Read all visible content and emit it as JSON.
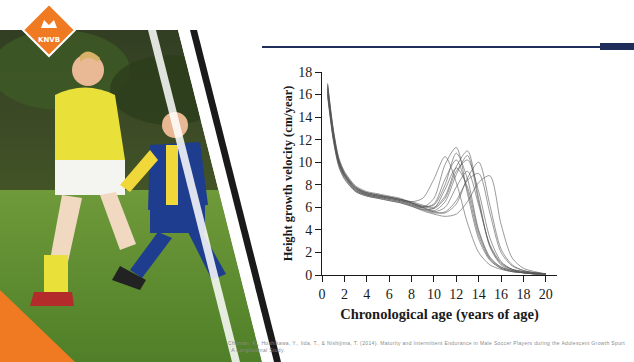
{
  "chart_data": {
    "type": "line",
    "xlabel": "Chronological age (years of age)",
    "ylabel": "Height growth velocity (cm/year)",
    "xlim": [
      0,
      21
    ],
    "xticks": [
      0,
      2,
      4,
      6,
      8,
      10,
      12,
      14,
      16,
      18,
      20
    ],
    "ylim": [
      0,
      18
    ],
    "yticks": [
      0,
      2,
      4,
      6,
      8,
      10,
      12,
      14,
      16,
      18
    ],
    "grid": false,
    "color": "#555555",
    "x": [
      0.5,
      1,
      1.5,
      2,
      3,
      4,
      5,
      6,
      7,
      8,
      9,
      10,
      11,
      12,
      13,
      14,
      15,
      16,
      17,
      18,
      19,
      20
    ],
    "series": [
      {
        "values": [
          16.8,
          12.8,
          10.2,
          9.0,
          7.8,
          7.3,
          7.1,
          6.9,
          6.7,
          6.5,
          6.8,
          8.5,
          10.5,
          8.2,
          4.6,
          2.0,
          0.9,
          0.5,
          0.3,
          0.2,
          0.1,
          0.1
        ]
      },
      {
        "values": [
          16.2,
          12.2,
          9.8,
          8.7,
          7.5,
          7.1,
          6.9,
          6.7,
          6.5,
          6.2,
          6.0,
          6.8,
          9.8,
          11.3,
          7.2,
          3.2,
          1.3,
          0.6,
          0.3,
          0.2,
          0.1,
          0.1
        ]
      },
      {
        "values": [
          17.0,
          13.0,
          10.4,
          9.2,
          7.9,
          7.4,
          7.2,
          7.0,
          6.8,
          6.4,
          6.1,
          6.2,
          8.0,
          10.8,
          8.5,
          4.0,
          1.6,
          0.7,
          0.4,
          0.2,
          0.1,
          0.1
        ]
      },
      {
        "values": [
          15.8,
          12.0,
          9.6,
          8.5,
          7.4,
          7.0,
          6.8,
          6.6,
          6.4,
          6.1,
          5.8,
          5.9,
          7.6,
          9.5,
          7.8,
          3.8,
          1.5,
          0.7,
          0.4,
          0.2,
          0.1,
          0.1
        ]
      },
      {
        "values": [
          16.5,
          12.5,
          10.0,
          8.9,
          7.7,
          7.2,
          7.0,
          6.9,
          6.7,
          6.4,
          6.0,
          5.7,
          6.5,
          8.9,
          10.6,
          6.5,
          2.6,
          1.0,
          0.5,
          0.3,
          0.1,
          0.1
        ]
      },
      {
        "values": [
          16.0,
          12.3,
          9.9,
          8.8,
          7.6,
          7.1,
          6.9,
          6.8,
          6.6,
          6.3,
          5.9,
          5.6,
          6.0,
          7.8,
          9.2,
          6.2,
          2.7,
          1.1,
          0.5,
          0.3,
          0.2,
          0.1
        ]
      },
      {
        "values": [
          16.6,
          12.6,
          10.1,
          8.9,
          7.6,
          7.2,
          7.0,
          6.8,
          6.6,
          6.4,
          6.1,
          5.9,
          6.8,
          9.2,
          10.2,
          7.4,
          3.3,
          1.2,
          0.5,
          0.3,
          0.2,
          0.1
        ]
      },
      {
        "values": [
          16.3,
          12.4,
          10.0,
          8.8,
          7.5,
          7.1,
          6.9,
          6.7,
          6.5,
          6.2,
          5.8,
          5.5,
          5.6,
          6.6,
          8.4,
          9.0,
          5.5,
          2.0,
          0.8,
          0.4,
          0.2,
          0.1
        ]
      },
      {
        "values": [
          16.9,
          12.9,
          10.3,
          9.1,
          7.8,
          7.3,
          7.1,
          6.9,
          6.7,
          6.4,
          6.0,
          5.6,
          5.5,
          6.3,
          8.6,
          10.0,
          6.2,
          2.3,
          0.9,
          0.4,
          0.2,
          0.1
        ]
      },
      {
        "values": [
          16.1,
          12.1,
          9.7,
          8.6,
          7.4,
          7.0,
          6.8,
          6.6,
          6.4,
          6.1,
          5.7,
          5.4,
          5.2,
          5.4,
          6.5,
          8.2,
          8.8,
          4.5,
          1.5,
          0.6,
          0.3,
          0.1
        ]
      },
      {
        "values": [
          16.4,
          12.4,
          10.0,
          8.9,
          7.7,
          7.3,
          7.1,
          6.9,
          6.7,
          6.5,
          6.2,
          6.0,
          7.0,
          9.6,
          11.0,
          6.8,
          2.5,
          0.9,
          0.4,
          0.2,
          0.1,
          0.1
        ]
      },
      {
        "values": [
          16.7,
          12.7,
          10.1,
          9.0,
          7.7,
          7.2,
          7.0,
          6.8,
          6.6,
          6.3,
          6.0,
          6.3,
          8.5,
          10.2,
          7.5,
          3.5,
          1.4,
          0.6,
          0.3,
          0.2,
          0.1,
          0.1
        ]
      }
    ]
  },
  "logo": "KNVB",
  "source": "Chuman, K., Hoshikawa, Y., Iida, T., & Nishijima, T. (2014). Maturity and Intermittent Endurance in Male Soccer Players during the Adolescent Growth Spurt : A Longitudinal Study."
}
